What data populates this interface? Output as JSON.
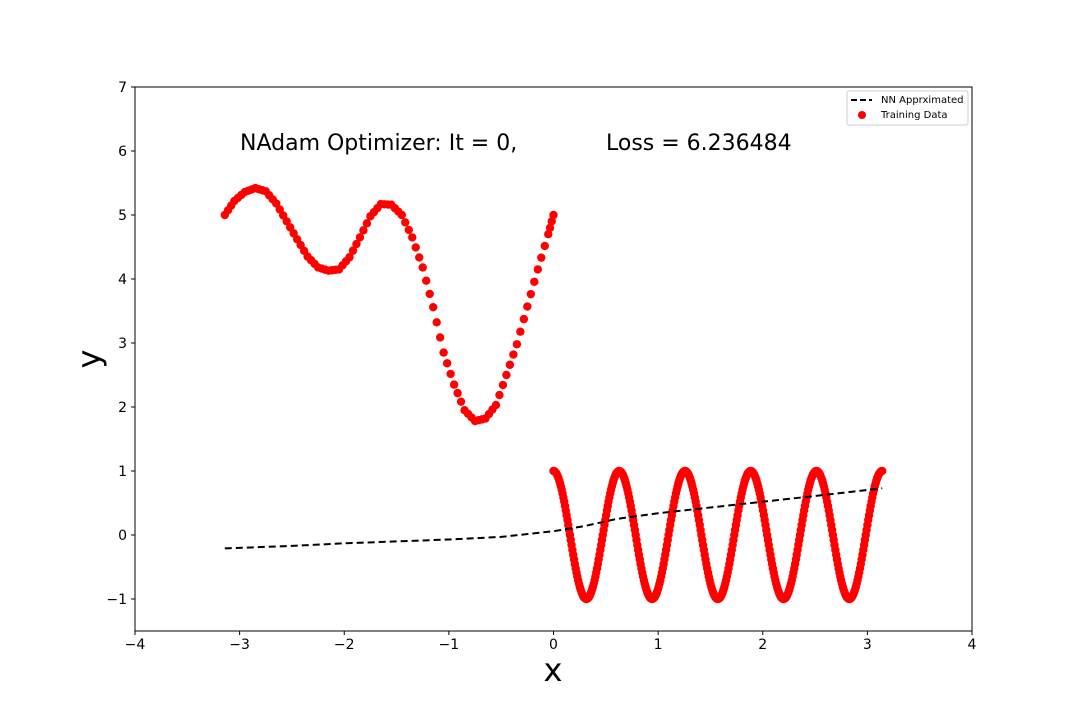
{
  "chart_data": {
    "type": "scatter",
    "xlabel": "x",
    "ylabel": "y",
    "xlim": [
      -4,
      4
    ],
    "ylim": [
      -1.5,
      7
    ],
    "xticks": [
      -4,
      -3,
      -2,
      -1,
      0,
      1,
      2,
      3,
      4
    ],
    "yticks": [
      -1,
      0,
      1,
      2,
      3,
      4,
      5,
      6,
      7
    ],
    "xtick_labels": [
      "−4",
      "−3",
      "−2",
      "−1",
      "0",
      "1",
      "2",
      "3",
      "4"
    ],
    "ytick_labels": [
      "−1",
      "0",
      "1",
      "2",
      "3",
      "4",
      "5",
      "6",
      "7"
    ],
    "grid": false,
    "legend_position": "top-right",
    "annotations": {
      "optimizer": "NAdam Optimizer: It = 0,",
      "loss": "Loss = 6.236484"
    },
    "series": [
      {
        "name": "NN Apprximated",
        "kind": "line",
        "style": "dashed",
        "color": "#000000",
        "x": [
          -3.1416,
          -2.5,
          -2.0,
          -1.5,
          -1.0,
          -0.5,
          0.0,
          0.3,
          0.6,
          1.0,
          1.5,
          2.0,
          2.5,
          3.1416
        ],
        "y": [
          -0.21,
          -0.17,
          -0.13,
          -0.1,
          -0.07,
          -0.03,
          0.06,
          0.14,
          0.25,
          0.34,
          0.43,
          0.52,
          0.61,
          0.73
        ]
      },
      {
        "name": "Training Data",
        "kind": "scatter",
        "color": "#ff0000",
        "segments": [
          {
            "x": [
              -3.1416,
              -3.05,
              -2.95,
              -2.85,
              -2.75,
              -2.65,
              -2.55,
              -2.45,
              -2.35,
              -2.25,
              -2.15,
              -2.05,
              -1.95,
              -1.85,
              -1.75,
              -1.65,
              -1.55,
              -1.45,
              -1.35,
              -1.25,
              -1.15,
              -1.05,
              -0.95,
              -0.85,
              -0.75,
              -0.65,
              -0.55,
              -0.45,
              -0.35,
              -0.25,
              -0.15,
              -0.05,
              0.0
            ],
            "y": [
              5.0,
              5.22,
              5.36,
              5.42,
              5.37,
              5.18,
              4.9,
              4.62,
              4.35,
              4.18,
              4.13,
              4.15,
              4.34,
              4.65,
              4.98,
              5.17,
              5.16,
              5.0,
              4.65,
              4.18,
              3.56,
              2.85,
              2.35,
              1.95,
              1.78,
              1.82,
              2.03,
              2.5,
              2.98,
              3.57,
              4.15,
              4.7,
              5.0
            ]
          },
          {
            "x_start": 0.0,
            "x_end": 3.1416,
            "y_formula": "cos(10x)",
            "y_range": [
              -1,
              1
            ]
          }
        ]
      }
    ]
  }
}
